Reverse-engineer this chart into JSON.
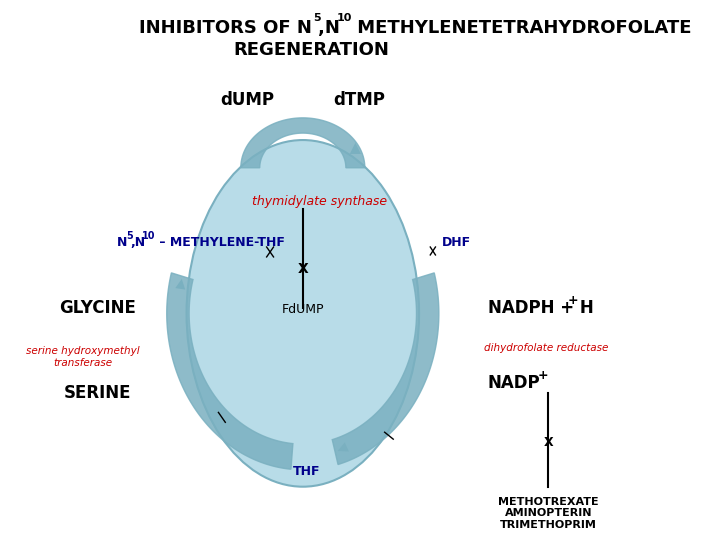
{
  "bg_color": "#ffffff",
  "ellipse_color": "#b8dce8",
  "ellipse_edge": "#7ab0c0",
  "arrow_color": "#7ab0c0",
  "text_black": "#000000",
  "text_red": "#cc0000",
  "text_blue": "#00008b",
  "label_dump": "dUMP",
  "label_dtmp": "dTMP",
  "label_thymidylate": "thymidylate synthase",
  "label_dhf": "DHF",
  "label_glycine": "GLYCINE",
  "label_sht": "serine hydroxymethyl\ntransferase",
  "label_serine": "SERINE",
  "label_fdump": "FdUMP",
  "label_thf": "THF",
  "label_nadph": "NADPH + H",
  "label_dihydro": "dihydrofolate reductase",
  "label_nadp": "NADP",
  "label_drugs": "METHOTREXATE\nAMINOPTERIN\nTRIMETHOPRIM"
}
